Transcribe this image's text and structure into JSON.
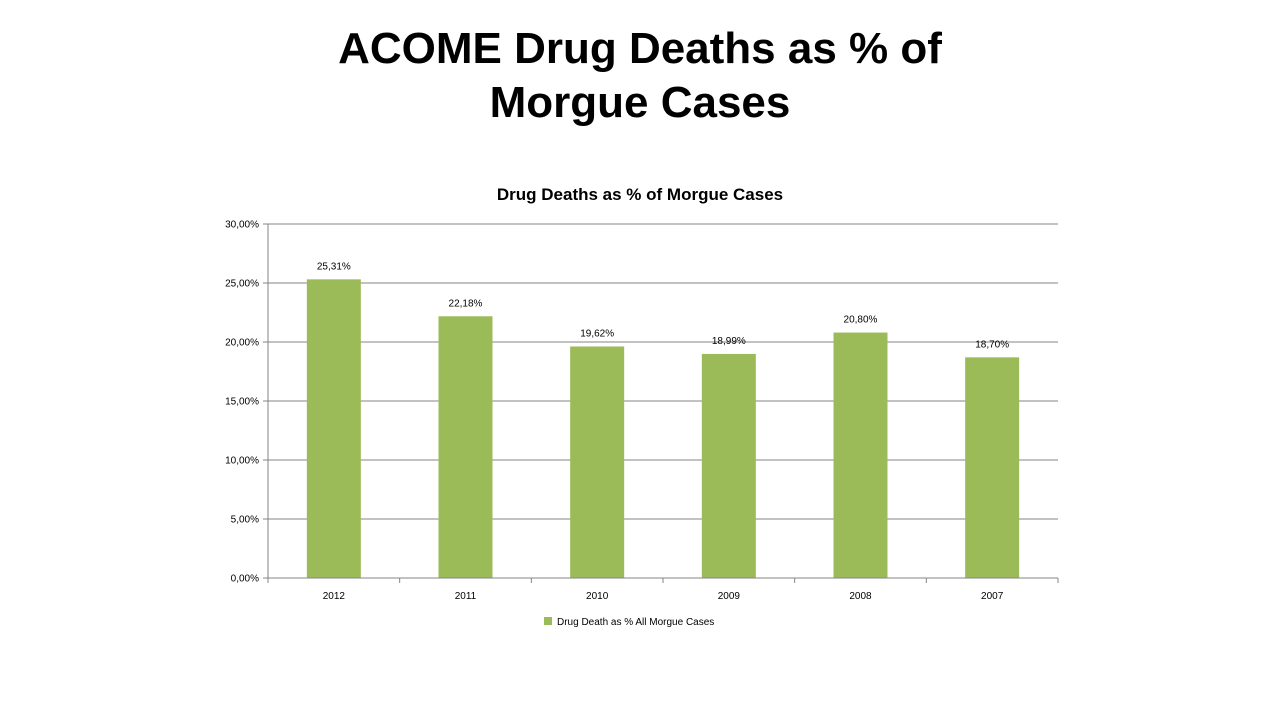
{
  "slide": {
    "title_line1": "ACOME Drug Deaths as % of",
    "title_line2": "Morgue Cases"
  },
  "chart_data": {
    "type": "bar",
    "title": "Drug Deaths as % of Morgue Cases",
    "categories": [
      "2012",
      "2011",
      "2010",
      "2009",
      "2008",
      "2007"
    ],
    "series": [
      {
        "name": "Drug Death as % All Morgue Cases",
        "values": [
          25.31,
          22.18,
          19.62,
          18.99,
          20.8,
          18.7
        ],
        "labels": [
          "25,31%",
          "22,18%",
          "19,62%",
          "18,99%",
          "20,80%",
          "18,70%"
        ],
        "color": "#9bbb59"
      }
    ],
    "ylim": [
      0,
      30
    ],
    "yticks": [
      0,
      5,
      10,
      15,
      20,
      25,
      30
    ],
    "ytick_labels": [
      "0,00%",
      "5,00%",
      "10,00%",
      "15,00%",
      "20,00%",
      "25,00%",
      "30,00%"
    ],
    "xlabel": "",
    "ylabel": "",
    "grid": true,
    "legend_position": "bottom",
    "gridline_color": "#868686"
  }
}
